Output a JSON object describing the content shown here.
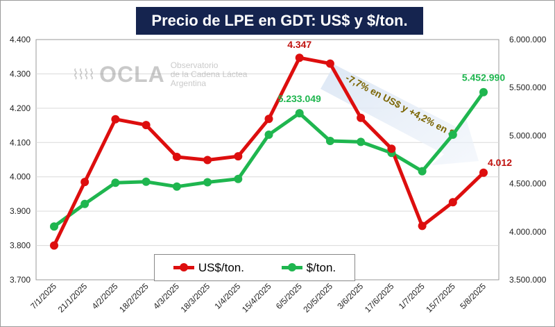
{
  "chart_data": {
    "type": "line",
    "title": "Precio de LPE en GDT: US$ y $/ton.",
    "categories": [
      "7/1/2025",
      "21/1/2025",
      "4/2/2025",
      "18/2/2025",
      "4/3/2025",
      "18/3/2025",
      "1/4/2025",
      "15/4/2025",
      "6/5/2025",
      "20/5/2025",
      "3/6/2025",
      "17/6/2025",
      "1/7/2025",
      "15/7/2025",
      "5/8/2025"
    ],
    "y_left": {
      "min": 3.7,
      "max": 4.4,
      "ticks": [
        "3.700",
        "3.800",
        "3.900",
        "4.000",
        "4.100",
        "4.200",
        "4.300",
        "4.400"
      ]
    },
    "y_right": {
      "min": 3500000,
      "max": 6000000,
      "ticks": [
        "3.500.000",
        "4.000.000",
        "4.500.000",
        "5.000.000",
        "5.500.000",
        "6.000.000"
      ]
    },
    "series": [
      {
        "name": "US$/ton.",
        "axis": "left",
        "color": "#dd0e0e",
        "values": [
          3.8,
          3.985,
          4.168,
          4.151,
          4.058,
          4.049,
          4.06,
          4.169,
          4.347,
          4.33,
          4.172,
          4.082,
          3.857,
          3.926,
          4.012
        ]
      },
      {
        "name": "$/ton.",
        "axis": "right",
        "color": "#1fb64f",
        "values": [
          4055000,
          4290000,
          4510000,
          4520000,
          4470000,
          4515000,
          4550000,
          5010000,
          5233049,
          4945000,
          4935000,
          4820000,
          4630000,
          5010000,
          5452990
        ]
      }
    ],
    "data_labels": [
      {
        "series": 0,
        "index": 8,
        "text": "4.347"
      },
      {
        "series": 0,
        "index": 14,
        "text": "4.012"
      },
      {
        "series": 1,
        "index": 8,
        "text": "5.233.049"
      },
      {
        "series": 1,
        "index": 14,
        "text": "5.452.990"
      }
    ],
    "annotation": "-7,7% en US$ y +4,2% en $",
    "legend": [
      "US$/ton.",
      "$/ton."
    ]
  },
  "watermark": {
    "brand": "OCLA",
    "line1": "Observatorio",
    "line2": "de la Cadena Láctea",
    "line3": "Argentina"
  },
  "colors": {
    "us": "#dd0e0e",
    "ars": "#1fb64f",
    "title_bg": "#15244f",
    "usLabel": "#c0120f",
    "arsLabel": "#1fb64f",
    "annotation": "#7a6400"
  }
}
